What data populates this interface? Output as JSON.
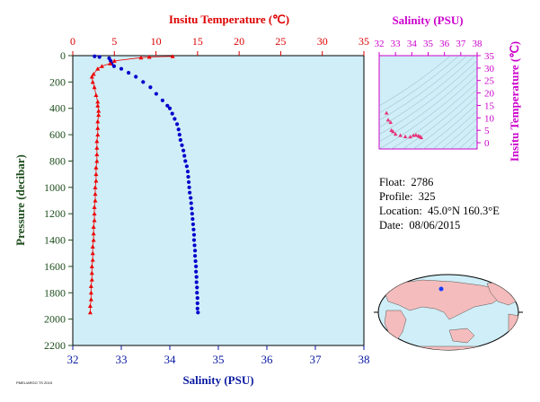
{
  "chart_data": [
    {
      "type": "scatter",
      "xlabel": "Salinity (PSU)",
      "x2label": "Insitu Temperature (℃)",
      "ylabel": "Pressure (decibar)",
      "xlim": [
        32,
        38
      ],
      "x2lim": [
        0,
        35
      ],
      "ylim": [
        2200,
        0
      ],
      "xticks": [
        "32",
        "33",
        "34",
        "35",
        "36",
        "37",
        "38"
      ],
      "x2ticks": [
        "0",
        "5",
        "10",
        "15",
        "20",
        "25",
        "30",
        "35"
      ],
      "yticks": [
        "0",
        "200",
        "400",
        "600",
        "800",
        "1000",
        "1200",
        "1400",
        "1600",
        "1800",
        "2000",
        "2200"
      ],
      "background": "#cfeef7",
      "series": [
        {
          "variable": "salinity",
          "color": "#0000cc",
          "marker": "circle",
          "points": [
            [
              32.45,
              5
            ],
            [
              32.55,
              10
            ],
            [
              32.75,
              20
            ],
            [
              32.78,
              40
            ],
            [
              32.8,
              60
            ],
            [
              32.85,
              80
            ],
            [
              33.0,
              100
            ],
            [
              33.15,
              130
            ],
            [
              33.3,
              160
            ],
            [
              33.45,
              200
            ],
            [
              33.6,
              240
            ],
            [
              33.72,
              290
            ],
            [
              33.85,
              340
            ],
            [
              33.95,
              380
            ],
            [
              34.0,
              400
            ],
            [
              34.05,
              440
            ],
            [
              34.1,
              480
            ],
            [
              34.15,
              520
            ],
            [
              34.18,
              560
            ],
            [
              34.2,
              600
            ],
            [
              34.22,
              640
            ],
            [
              34.25,
              680
            ],
            [
              34.28,
              720
            ],
            [
              34.3,
              760
            ],
            [
              34.32,
              800
            ],
            [
              34.35,
              840
            ],
            [
              34.37,
              880
            ],
            [
              34.38,
              920
            ],
            [
              34.39,
              960
            ],
            [
              34.4,
              1000
            ],
            [
              34.41,
              1040
            ],
            [
              34.43,
              1080
            ],
            [
              34.44,
              1120
            ],
            [
              34.45,
              1160
            ],
            [
              34.46,
              1200
            ],
            [
              34.47,
              1240
            ],
            [
              34.48,
              1280
            ],
            [
              34.49,
              1320
            ],
            [
              34.5,
              1360
            ],
            [
              34.5,
              1400
            ],
            [
              34.51,
              1440
            ],
            [
              34.52,
              1480
            ],
            [
              34.52,
              1520
            ],
            [
              34.53,
              1560
            ],
            [
              34.54,
              1600
            ],
            [
              34.54,
              1640
            ],
            [
              34.55,
              1680
            ],
            [
              34.55,
              1720
            ],
            [
              34.56,
              1760
            ],
            [
              34.56,
              1800
            ],
            [
              34.57,
              1840
            ],
            [
              34.57,
              1880
            ],
            [
              34.57,
              1920
            ],
            [
              34.58,
              1950
            ]
          ]
        },
        {
          "variable": "temperature",
          "color": "#ee0000",
          "marker": "triangle",
          "connect": true,
          "points": [
            [
              12.0,
              5
            ],
            [
              9.2,
              10
            ],
            [
              8.2,
              15
            ],
            [
              5.0,
              40
            ],
            [
              4.5,
              60
            ],
            [
              3.5,
              80
            ],
            [
              3.0,
              100
            ],
            [
              2.5,
              140
            ],
            [
              2.3,
              160
            ],
            [
              2.4,
              200
            ],
            [
              2.6,
              240
            ],
            [
              2.8,
              300
            ],
            [
              3.0,
              350
            ],
            [
              3.0,
              380
            ],
            [
              3.1,
              420
            ],
            [
              3.1,
              450
            ],
            [
              3.0,
              500
            ],
            [
              3.0,
              550
            ],
            [
              3.0,
              600
            ],
            [
              2.9,
              650
            ],
            [
              2.9,
              700
            ],
            [
              2.9,
              750
            ],
            [
              2.9,
              800
            ],
            [
              2.8,
              850
            ],
            [
              2.8,
              900
            ],
            [
              2.8,
              950
            ],
            [
              2.7,
              1000
            ],
            [
              2.7,
              1050
            ],
            [
              2.7,
              1100
            ],
            [
              2.6,
              1150
            ],
            [
              2.6,
              1200
            ],
            [
              2.6,
              1250
            ],
            [
              2.5,
              1300
            ],
            [
              2.5,
              1350
            ],
            [
              2.5,
              1400
            ],
            [
              2.4,
              1450
            ],
            [
              2.4,
              1500
            ],
            [
              2.4,
              1550
            ],
            [
              2.3,
              1600
            ],
            [
              2.3,
              1650
            ],
            [
              2.3,
              1700
            ],
            [
              2.2,
              1750
            ],
            [
              2.2,
              1800
            ],
            [
              2.2,
              1850
            ],
            [
              2.1,
              1900
            ],
            [
              2.1,
              1950
            ]
          ]
        }
      ]
    },
    {
      "type": "scatter",
      "x2label": "Salinity (PSU)",
      "y2label": "Insitu Temperature (℃)",
      "x2lim": [
        32,
        38
      ],
      "y2lim": [
        -2.5,
        35
      ],
      "x2ticks": [
        "32",
        "33",
        "34",
        "35",
        "36",
        "37",
        "38"
      ],
      "y2ticks": [
        "0",
        "5",
        "10",
        "15",
        "20",
        "25",
        "30",
        "35"
      ],
      "background": "#cfeef7",
      "series": [
        {
          "color": "#e8337a",
          "marker": "triangle",
          "points": [
            [
              32.45,
              12.0
            ],
            [
              32.55,
              9.2
            ],
            [
              32.7,
              8.2
            ],
            [
              32.75,
              5.0
            ],
            [
              32.85,
              4.5
            ],
            [
              33.0,
              3.5
            ],
            [
              33.3,
              3.0
            ],
            [
              33.6,
              2.5
            ],
            [
              33.9,
              2.4
            ],
            [
              34.1,
              3.0
            ],
            [
              34.25,
              3.1
            ],
            [
              34.4,
              2.8
            ],
            [
              34.5,
              2.5
            ],
            [
              34.58,
              2.1
            ]
          ]
        }
      ]
    }
  ],
  "info": {
    "float_label": "Float:",
    "float_value": "2786",
    "profile_label": "Profile:",
    "profile_value": "325",
    "location_label": "Location:",
    "location_value": "45.0°N  160.3°E",
    "date_label": "Date:",
    "date_value": "08/06/2015"
  },
  "map": {
    "marker_color": "#1a3cff",
    "ocean_color": "#cfeef7",
    "land_color": "#f4bcbc"
  },
  "credit": "PMEL/ARGO TS 2015"
}
